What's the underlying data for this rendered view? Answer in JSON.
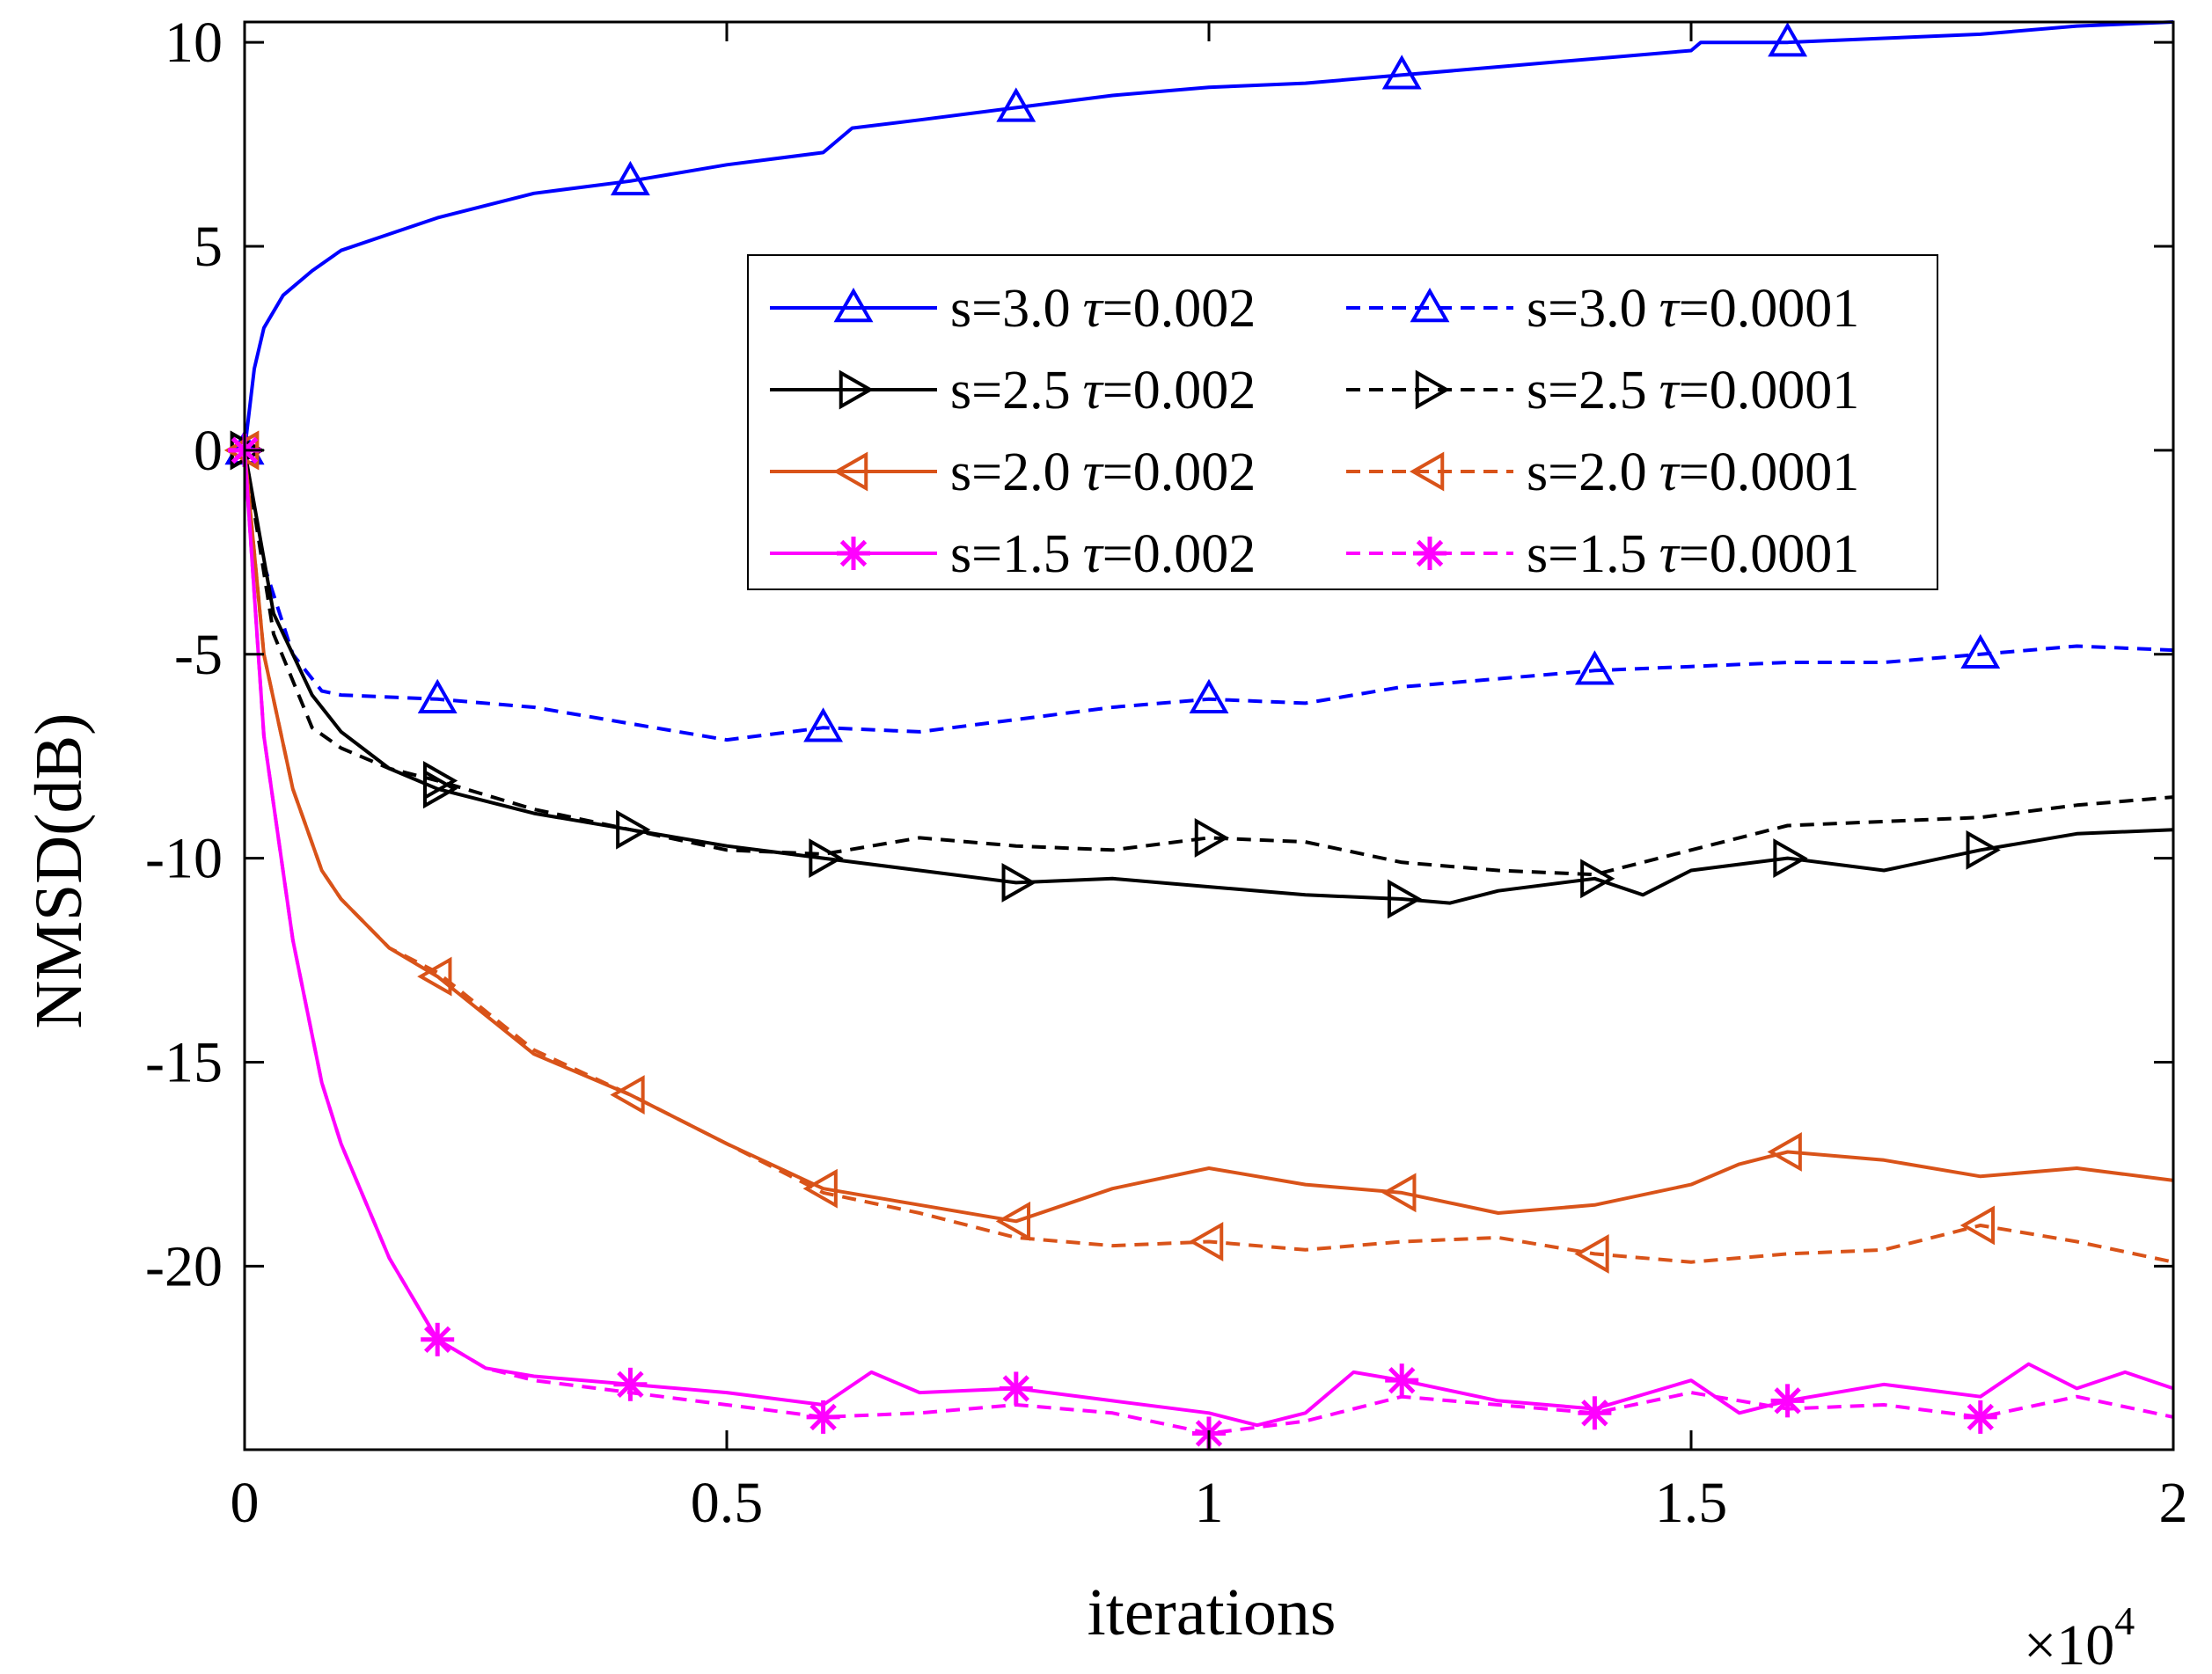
{
  "chart_data": {
    "type": "line",
    "title": "",
    "xlabel": "iterations",
    "ylabel": "NMSD(dB)",
    "x_multiplier_base": "×10",
    "x_multiplier_exp": "4",
    "xlim": [
      0,
      20000
    ],
    "ylim": [
      -24.5,
      10.5
    ],
    "xticks": [
      0,
      5000,
      10000,
      15000,
      20000
    ],
    "xtick_labels": [
      "0",
      "0.5",
      "1",
      "1.5",
      "2"
    ],
    "yticks": [
      10,
      5,
      0,
      -5,
      -10,
      -15,
      -20
    ],
    "ytick_labels": [
      "10",
      "5",
      "0",
      "-5",
      "-10",
      "-15",
      "-20"
    ],
    "grid": false,
    "legend_position": "upper-center",
    "tau_symbol": "τ",
    "series": [
      {
        "name": "s=3.0 τ=0.002",
        "s_label": "s=3.0",
        "tau_label": "=0.002",
        "color": "#0000ff",
        "dash": "solid",
        "marker": "triangle-up",
        "x": [
          0,
          100,
          200,
          400,
          700,
          1000,
          1500,
          2000,
          3000,
          4000,
          5000,
          6000,
          6300,
          7000,
          8000,
          9000,
          10000,
          11000,
          12000,
          13000,
          14000,
          15000,
          15100,
          16000,
          17000,
          18000,
          19000,
          20000
        ],
        "y": [
          0,
          2.0,
          3.0,
          3.8,
          4.4,
          4.9,
          5.3,
          5.7,
          6.3,
          6.6,
          7.0,
          7.3,
          7.9,
          8.1,
          8.4,
          8.7,
          8.9,
          9.0,
          9.2,
          9.4,
          9.6,
          9.8,
          10.0,
          10.0,
          10.1,
          10.2,
          10.4,
          10.5
        ],
        "marker_x": [
          4000,
          8000,
          12000,
          16000
        ]
      },
      {
        "name": "s=3.0 τ=0.0001",
        "s_label": "s=3.0",
        "tau_label": "=0.0001",
        "color": "#0000ff",
        "dash": "dashed",
        "marker": "triangle-up",
        "x": [
          0,
          200,
          500,
          800,
          1000,
          2000,
          3000,
          4000,
          5000,
          6000,
          7000,
          8000,
          9000,
          10000,
          11000,
          12000,
          13000,
          14000,
          15000,
          16000,
          17000,
          18000,
          19000,
          20000
        ],
        "y": [
          0,
          -2.8,
          -5.0,
          -5.9,
          -6.0,
          -6.1,
          -6.3,
          -6.7,
          -7.1,
          -6.8,
          -6.9,
          -6.6,
          -6.3,
          -6.1,
          -6.2,
          -5.8,
          -5.6,
          -5.4,
          -5.3,
          -5.2,
          -5.2,
          -5.0,
          -4.8,
          -4.9
        ],
        "marker_x": [
          2000,
          6000,
          10000,
          14000,
          18000
        ]
      },
      {
        "name": "s=2.5 τ=0.002",
        "s_label": "s=2.5",
        "tau_label": "=0.002",
        "color": "#000000",
        "dash": "solid",
        "marker": "triangle-right",
        "x": [
          0,
          300,
          700,
          1000,
          1500,
          2000,
          3000,
          4000,
          5000,
          6000,
          7000,
          8000,
          9000,
          10000,
          11000,
          12000,
          12500,
          13000,
          14000,
          14500,
          15000,
          16000,
          17000,
          18000,
          19000,
          20000
        ],
        "y": [
          0,
          -4.0,
          -6.0,
          -6.9,
          -7.8,
          -8.3,
          -8.9,
          -9.3,
          -9.7,
          -10.0,
          -10.3,
          -10.6,
          -10.5,
          -10.7,
          -10.9,
          -11.0,
          -11.1,
          -10.8,
          -10.5,
          -10.9,
          -10.3,
          -10.0,
          -10.3,
          -9.8,
          -9.4,
          -9.3
        ],
        "marker_x": [
          2000,
          4000,
          6000,
          8000,
          12000,
          14000,
          16000,
          18000
        ]
      },
      {
        "name": "s=2.5 τ=0.0001",
        "s_label": "s=2.5",
        "tau_label": "=0.0001",
        "color": "#000000",
        "dash": "dashed",
        "marker": "triangle-right",
        "x": [
          0,
          300,
          700,
          1000,
          1500,
          2000,
          3000,
          4000,
          5000,
          6000,
          7000,
          8000,
          9000,
          10000,
          11000,
          12000,
          13000,
          14000,
          15000,
          16000,
          17000,
          18000,
          19000,
          20000
        ],
        "y": [
          0,
          -4.5,
          -6.8,
          -7.3,
          -7.8,
          -8.1,
          -8.8,
          -9.3,
          -9.8,
          -9.9,
          -9.5,
          -9.7,
          -9.8,
          -9.5,
          -9.6,
          -10.1,
          -10.3,
          -10.4,
          -9.8,
          -9.2,
          -9.1,
          -9.0,
          -8.7,
          -8.5
        ],
        "marker_x": [
          2000,
          10000
        ]
      },
      {
        "name": "s=2.0 τ=0.002",
        "s_label": "s=2.0",
        "tau_label": "=0.002",
        "color": "#d95319",
        "dash": "solid",
        "marker": "triangle-left",
        "x": [
          0,
          200,
          500,
          800,
          1000,
          1500,
          2000,
          3000,
          4000,
          5000,
          6000,
          7000,
          8000,
          9000,
          10000,
          11000,
          12000,
          13000,
          14000,
          15000,
          15500,
          16000,
          17000,
          18000,
          19000,
          20000
        ],
        "y": [
          0,
          -5.0,
          -8.3,
          -10.3,
          -11.0,
          -12.2,
          -12.9,
          -14.8,
          -15.8,
          -17.0,
          -18.1,
          -18.5,
          -18.9,
          -18.1,
          -17.6,
          -18.0,
          -18.2,
          -18.7,
          -18.5,
          -18.0,
          -17.5,
          -17.2,
          -17.4,
          -17.8,
          -17.6,
          -17.9
        ],
        "marker_x": [
          2000,
          4000,
          6000,
          8000,
          12000,
          16000
        ]
      },
      {
        "name": "s=2.0 τ=0.0001",
        "s_label": "s=2.0",
        "tau_label": "=0.0001",
        "color": "#d95319",
        "dash": "dashed",
        "marker": "triangle-left",
        "x": [
          0,
          200,
          500,
          800,
          1000,
          1500,
          2000,
          3000,
          4000,
          5000,
          6000,
          7000,
          8000,
          9000,
          10000,
          11000,
          12000,
          13000,
          14000,
          15000,
          16000,
          17000,
          18000,
          19000,
          20000
        ],
        "y": [
          0,
          -5.0,
          -8.3,
          -10.3,
          -11.0,
          -12.2,
          -12.8,
          -14.7,
          -15.8,
          -17.0,
          -18.2,
          -18.7,
          -19.3,
          -19.5,
          -19.4,
          -19.6,
          -19.4,
          -19.3,
          -19.7,
          -19.9,
          -19.7,
          -19.6,
          -19.0,
          -19.4,
          -19.9
        ],
        "marker_x": [
          10000,
          14000,
          18000
        ]
      },
      {
        "name": "s=1.5 τ=0.002",
        "s_label": "s=1.5",
        "tau_label": "=0.002",
        "color": "#ff00ff",
        "dash": "solid",
        "marker": "star",
        "x": [
          0,
          200,
          500,
          800,
          1000,
          1500,
          2000,
          2500,
          3000,
          4000,
          5000,
          6000,
          6500,
          7000,
          8000,
          9000,
          10000,
          10500,
          11000,
          11500,
          12000,
          13000,
          14000,
          15000,
          15500,
          16000,
          17000,
          18000,
          18500,
          19000,
          19500,
          20000
        ],
        "y": [
          0,
          -7.0,
          -12.0,
          -15.5,
          -17.0,
          -19.8,
          -21.8,
          -22.5,
          -22.7,
          -22.9,
          -23.1,
          -23.4,
          -22.6,
          -23.1,
          -23.0,
          -23.3,
          -23.6,
          -23.9,
          -23.6,
          -22.6,
          -22.8,
          -23.3,
          -23.5,
          -22.8,
          -23.6,
          -23.3,
          -22.9,
          -23.2,
          -22.4,
          -23.0,
          -22.6,
          -23.0
        ],
        "marker_x": [
          2000,
          4000,
          8000,
          12000,
          16000
        ]
      },
      {
        "name": "s=1.5 τ=0.0001",
        "s_label": "s=1.5",
        "tau_label": "=0.0001",
        "color": "#ff00ff",
        "dash": "dashed",
        "marker": "star",
        "x": [
          0,
          200,
          500,
          800,
          1000,
          1500,
          2000,
          2500,
          3000,
          4000,
          5000,
          6000,
          7000,
          8000,
          9000,
          10000,
          11000,
          12000,
          13000,
          14000,
          15000,
          16000,
          17000,
          18000,
          19000,
          20000
        ],
        "y": [
          0,
          -7.0,
          -12.0,
          -15.5,
          -17.0,
          -19.8,
          -21.8,
          -22.5,
          -22.8,
          -23.1,
          -23.4,
          -23.7,
          -23.6,
          -23.4,
          -23.6,
          -24.1,
          -23.8,
          -23.2,
          -23.4,
          -23.6,
          -23.1,
          -23.5,
          -23.4,
          -23.7,
          -23.2,
          -23.7
        ],
        "marker_x": [
          6000,
          10000,
          14000,
          18000
        ]
      }
    ]
  }
}
